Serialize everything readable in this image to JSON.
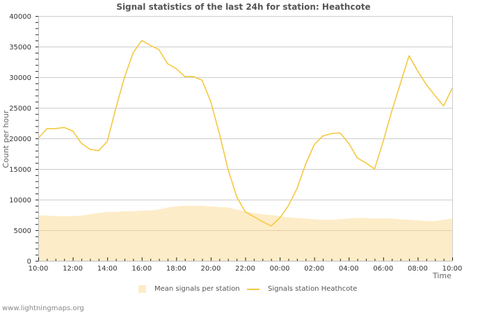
{
  "title": "Signal statistics of the last 24h for station: Heathcote",
  "credit": "www.lightningmaps.org",
  "colors": {
    "line": "#f5c842",
    "area": "#fdecc8",
    "grid": "#cccccc",
    "area_grid": "#e0cfa6",
    "axis": "#bbbbbb"
  },
  "legend": {
    "area_label": "Mean signals per station",
    "line_label": "Signals station Heathcote"
  },
  "chart_data": {
    "type": "line",
    "title": "Signal statistics of the last 24h for station: Heathcote",
    "xlabel": "Time",
    "ylabel": "Count per hour",
    "ylim": [
      0,
      40000
    ],
    "yticks": [
      0,
      5000,
      10000,
      15000,
      20000,
      25000,
      30000,
      35000,
      40000
    ],
    "xticks": [
      "10:00",
      "12:00",
      "14:00",
      "16:00",
      "18:00",
      "20:00",
      "22:00",
      "00:00",
      "02:00",
      "04:00",
      "06:00",
      "08:00",
      "10:00"
    ],
    "grid": true,
    "legend_position": "bottom",
    "x": [
      "10:00",
      "10:30",
      "11:00",
      "11:30",
      "12:00",
      "12:30",
      "13:00",
      "13:30",
      "14:00",
      "14:30",
      "15:00",
      "15:30",
      "16:00",
      "16:30",
      "17:00",
      "17:30",
      "18:00",
      "18:30",
      "19:00",
      "19:30",
      "20:00",
      "20:30",
      "21:00",
      "21:30",
      "22:00",
      "22:30",
      "23:00",
      "23:30",
      "00:00",
      "00:30",
      "01:00",
      "01:30",
      "02:00",
      "02:30",
      "03:00",
      "03:30",
      "04:00",
      "04:30",
      "05:00",
      "05:30",
      "06:00",
      "06:30",
      "07:00",
      "07:30",
      "08:00",
      "08:30",
      "09:00",
      "09:30",
      "10:00"
    ],
    "series": [
      {
        "name": "Mean signals per station",
        "type": "area",
        "values": [
          7400,
          7400,
          7300,
          7300,
          7300,
          7400,
          7600,
          7800,
          8000,
          8000,
          8100,
          8100,
          8200,
          8200,
          8400,
          8700,
          8900,
          9000,
          9000,
          9000,
          8900,
          8800,
          8700,
          8400,
          8100,
          7800,
          7600,
          7500,
          7300,
          7100,
          7000,
          6900,
          6800,
          6700,
          6700,
          6800,
          6900,
          7000,
          7000,
          6900,
          6900,
          6900,
          6800,
          6700,
          6600,
          6500,
          6500,
          6700,
          6900
        ]
      },
      {
        "name": "Signals station Heathcote",
        "type": "line",
        "values": [
          20000,
          21600,
          21600,
          21800,
          21200,
          19200,
          18200,
          18000,
          19500,
          25000,
          30000,
          34000,
          36000,
          35200,
          34500,
          32200,
          31400,
          30100,
          30100,
          29500,
          26000,
          20800,
          15000,
          10500,
          8000,
          7200,
          6400,
          5700,
          7000,
          9000,
          11800,
          15800,
          19000,
          20400,
          20800,
          20900,
          19200,
          16800,
          16000,
          15000,
          19500,
          24500,
          29000,
          33500,
          31000,
          28800,
          27000,
          25300,
          28200
        ]
      }
    ]
  }
}
